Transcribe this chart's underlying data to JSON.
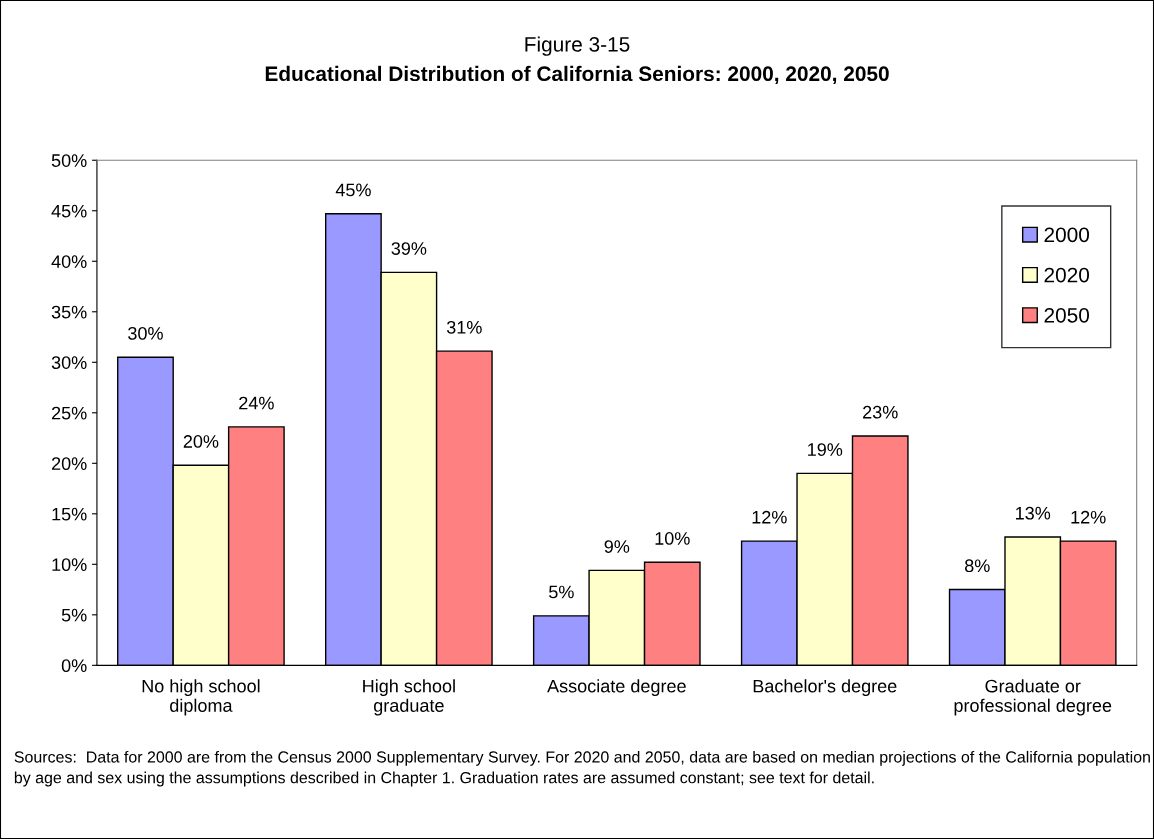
{
  "chart_data": {
    "type": "bar",
    "title": "Figure 3-15",
    "subtitle": "Educational Distribution of California Seniors: 2000, 2020, 2050",
    "categories": [
      "No high school\ndiploma",
      "High school\ngraduate",
      "Associate degree",
      "Bachelor's degree",
      "Graduate or\nprofessional degree"
    ],
    "series": [
      {
        "name": "2000",
        "color": "#9999ff",
        "values": [
          30.5,
          44.7,
          4.9,
          12.3,
          7.5
        ],
        "value_labels": [
          "30%",
          "45%",
          "5%",
          "12%",
          "8%"
        ]
      },
      {
        "name": "2020",
        "color": "#ffffcc",
        "values": [
          19.8,
          38.9,
          9.4,
          19.0,
          12.7
        ],
        "value_labels": [
          "20%",
          "39%",
          "9%",
          "19%",
          "13%"
        ]
      },
      {
        "name": "2050",
        "color": "#ff8080",
        "values": [
          23.6,
          31.1,
          10.2,
          22.7,
          12.3
        ],
        "value_labels": [
          "24%",
          "31%",
          "10%",
          "23%",
          "12%"
        ]
      }
    ],
    "ylim": [
      0,
      50
    ],
    "yticks": [
      {
        "value": 0,
        "label": "0%"
      },
      {
        "value": 5,
        "label": "5%"
      },
      {
        "value": 10,
        "label": "10%"
      },
      {
        "value": 15,
        "label": "15%"
      },
      {
        "value": 20,
        "label": "20%"
      },
      {
        "value": 25,
        "label": "25%"
      },
      {
        "value": 30,
        "label": "30%"
      },
      {
        "value": 35,
        "label": "35%"
      },
      {
        "value": 40,
        "label": "40%"
      },
      {
        "value": 45,
        "label": "45%"
      },
      {
        "value": 50,
        "label": "50%"
      }
    ],
    "grid": false,
    "legend": "top right",
    "annotations": [
      "Sources:  Data for 2000 are from the Census 2000 Supplementary Survey. For 2020 and 2050, data are based on median projections of the California population by age and sex using the assumptions described in Chapter 1. Graduation rates are assumed constant; see text for detail."
    ]
  }
}
